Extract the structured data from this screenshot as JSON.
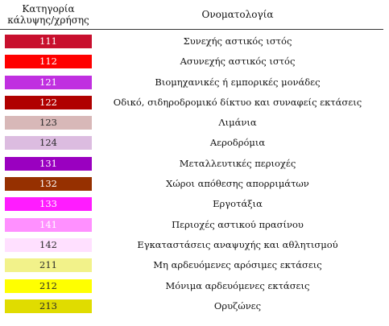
{
  "header": {
    "code_title": "Κατηγορία κάλυψης/χρήσης",
    "name_title": "Ονοματολογία"
  },
  "rows": [
    {
      "code": "111",
      "name": "Συνεχής αστικός ιστός",
      "color": "#c8102e",
      "dark_text": false
    },
    {
      "code": "112",
      "name": "Ασυνεχής αστικός ιστός",
      "color": "#ff0000",
      "dark_text": false
    },
    {
      "code": "121",
      "name": "Βιομηχανικές ή εμπορικές μονάδες",
      "color": "#c030e0",
      "dark_text": false
    },
    {
      "code": "122",
      "name": "Οδικό, σιδηροδρομικό δίκτυο και συναφείς εκτάσεις",
      "color": "#b00000",
      "dark_text": false
    },
    {
      "code": "123",
      "name": "Λιμάνια",
      "color": "#d8b8b8",
      "dark_text": true
    },
    {
      "code": "124",
      "name": "Αεροδρόμια",
      "color": "#dcbce0",
      "dark_text": true
    },
    {
      "code": "131",
      "name": "Μεταλλευτικές περιοχές",
      "color": "#9a00c0",
      "dark_text": false
    },
    {
      "code": "132",
      "name": "Χώροι απόθεσης απορριμάτων",
      "color": "#963000",
      "dark_text": false
    },
    {
      "code": "133",
      "name": "Εργοτάξια",
      "color": "#ff1cff",
      "dark_text": false
    },
    {
      "code": "141",
      "name": "Περιοχές αστικού πρασίνου",
      "color": "#ff90ff",
      "dark_text": false
    },
    {
      "code": "142",
      "name": "Εγκαταστάσεις αναψυχής και αθλητισμού",
      "color": "#ffe0ff",
      "dark_text": true
    },
    {
      "code": "211",
      "name": "Μη αρδευόμενες αρόσιμες εκτάσεις",
      "color": "#f2f28a",
      "dark_text": true
    },
    {
      "code": "212",
      "name": "Μόνιμα αρδευόμενες εκτάσεις",
      "color": "#ffff00",
      "dark_text": true
    },
    {
      "code": "213",
      "name": "Ορυζώνες",
      "color": "#e0dc00",
      "dark_text": true
    }
  ]
}
